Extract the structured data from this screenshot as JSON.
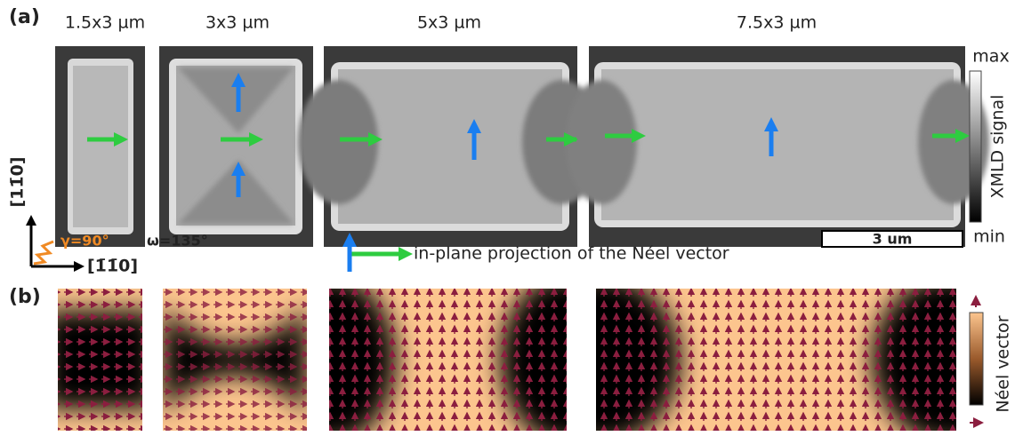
{
  "panel_a": {
    "label": "(a)",
    "sizes": [
      "1.5x3 µm",
      "3x3 µm",
      "5x3 µm",
      "7.5x3 µm"
    ],
    "colorbar": {
      "max": "max",
      "min": "min",
      "title": "XMLD signal"
    },
    "scale_bar": "3 um",
    "axes": {
      "vertical": "[11̄0]",
      "horizontal": "[1̄1̄0]",
      "gamma": "γ=90°",
      "omega": "ω=135°"
    },
    "legend": "in-plane projection of the Néel vector"
  },
  "panel_b": {
    "label": "(b)",
    "colorbar_title": "Néel vector"
  }
}
